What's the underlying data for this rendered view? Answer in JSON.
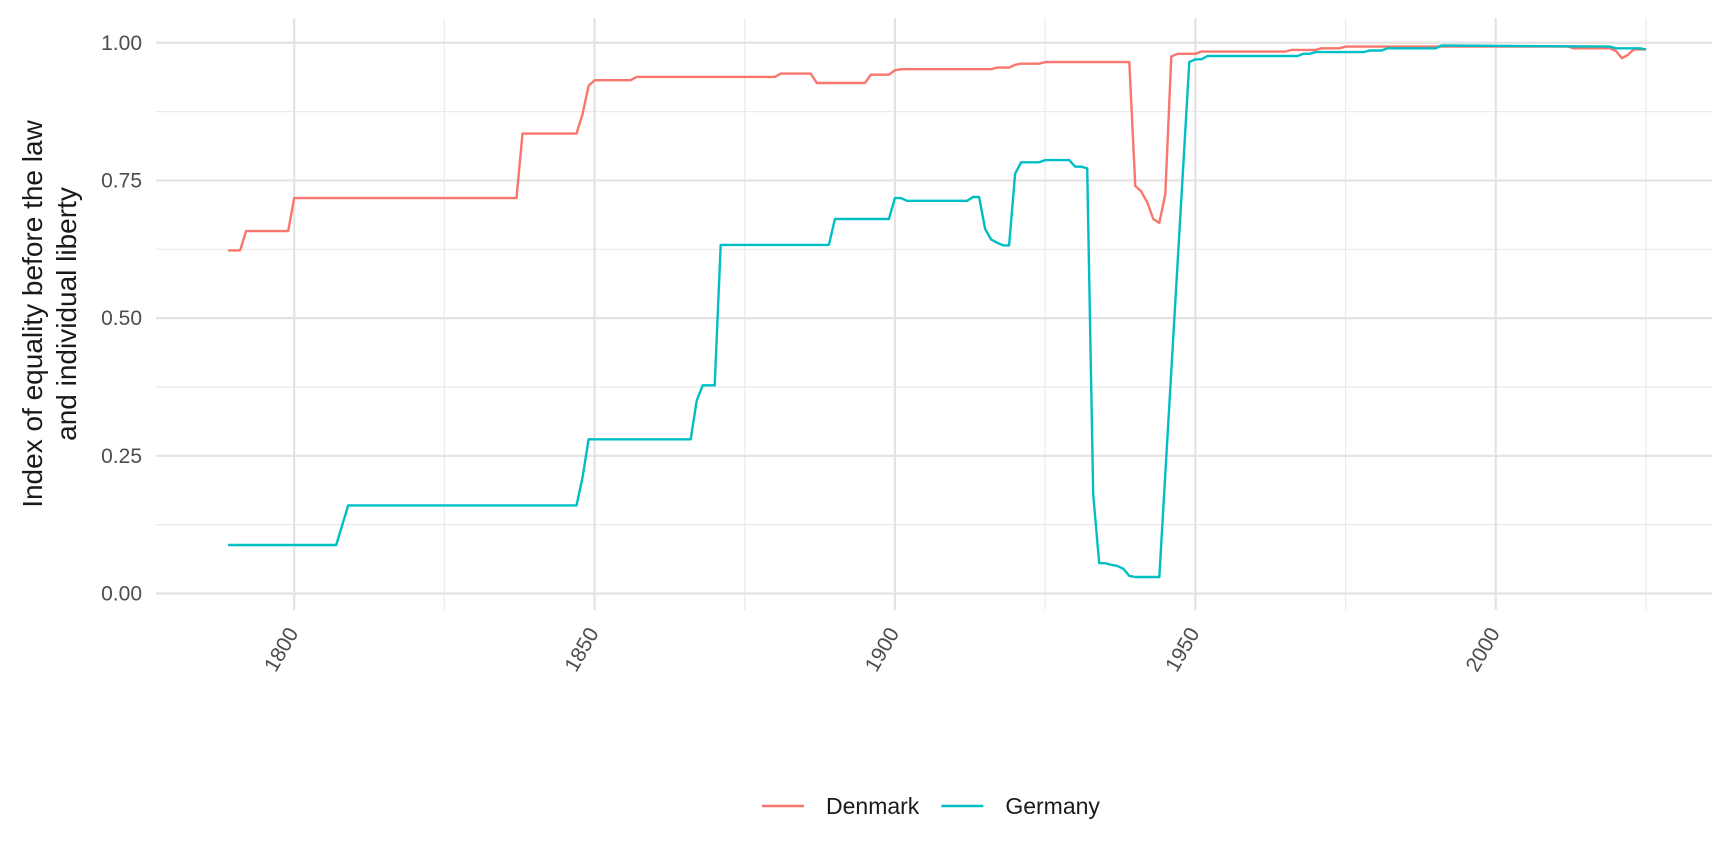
{
  "chart_data": {
    "type": "line",
    "title": "",
    "xlabel": "",
    "ylabel": [
      "Index of equality before the law",
      "and individual liberty"
    ],
    "xlim": [
      1777,
      2036
    ],
    "ylim": [
      -0.03,
      1.045
    ],
    "x_ticks": [
      1800,
      1850,
      1900,
      1950,
      2000
    ],
    "x_ticks_minor": [
      1825,
      1875,
      1925,
      1975,
      2025
    ],
    "y_ticks": [
      0.0,
      0.25,
      0.5,
      0.75,
      1.0
    ],
    "y_tick_labels": [
      "0.00",
      "0.25",
      "0.50",
      "0.75",
      "1.00"
    ],
    "y_ticks_minor": [
      0.125,
      0.375,
      0.625,
      0.875
    ],
    "grid": true,
    "legend_position": "bottom",
    "series": [
      {
        "name": "Denmark",
        "color": "#F8766D",
        "points": [
          [
            1789,
            0.623
          ],
          [
            1791,
            0.623
          ],
          [
            1792,
            0.658
          ],
          [
            1799,
            0.658
          ],
          [
            1800,
            0.718
          ],
          [
            1837,
            0.718
          ],
          [
            1838,
            0.835
          ],
          [
            1847,
            0.835
          ],
          [
            1848,
            0.87
          ],
          [
            1849,
            0.922
          ],
          [
            1850,
            0.932
          ],
          [
            1856,
            0.932
          ],
          [
            1857,
            0.938
          ],
          [
            1880,
            0.938
          ],
          [
            1881,
            0.944
          ],
          [
            1886,
            0.944
          ],
          [
            1887,
            0.927
          ],
          [
            1895,
            0.927
          ],
          [
            1896,
            0.942
          ],
          [
            1899,
            0.942
          ],
          [
            1900,
            0.95
          ],
          [
            1901,
            0.952
          ],
          [
            1916,
            0.952
          ],
          [
            1917,
            0.955
          ],
          [
            1919,
            0.955
          ],
          [
            1920,
            0.96
          ],
          [
            1921,
            0.962
          ],
          [
            1924,
            0.962
          ],
          [
            1925,
            0.965
          ],
          [
            1939,
            0.965
          ],
          [
            1940,
            0.74
          ],
          [
            1941,
            0.73
          ],
          [
            1942,
            0.71
          ],
          [
            1943,
            0.68
          ],
          [
            1944,
            0.673
          ],
          [
            1945,
            0.725
          ],
          [
            1946,
            0.975
          ],
          [
            1947,
            0.98
          ],
          [
            1950,
            0.98
          ],
          [
            1951,
            0.984
          ],
          [
            1965,
            0.984
          ],
          [
            1966,
            0.987
          ],
          [
            1970,
            0.987
          ],
          [
            1971,
            0.99
          ],
          [
            1974,
            0.99
          ],
          [
            1975,
            0.993
          ],
          [
            2012,
            0.993
          ],
          [
            2013,
            0.99
          ],
          [
            2019,
            0.99
          ],
          [
            2020,
            0.985
          ],
          [
            2021,
            0.972
          ],
          [
            2022,
            0.978
          ],
          [
            2023,
            0.988
          ],
          [
            2025,
            0.988
          ]
        ]
      },
      {
        "name": "Germany",
        "color": "#00BFC4",
        "points": [
          [
            1789,
            0.088
          ],
          [
            1807,
            0.088
          ],
          [
            1809,
            0.16
          ],
          [
            1847,
            0.16
          ],
          [
            1848,
            0.21
          ],
          [
            1849,
            0.28
          ],
          [
            1866,
            0.28
          ],
          [
            1867,
            0.35
          ],
          [
            1868,
            0.378
          ],
          [
            1870,
            0.378
          ],
          [
            1871,
            0.633
          ],
          [
            1889,
            0.633
          ],
          [
            1890,
            0.68
          ],
          [
            1899,
            0.68
          ],
          [
            1900,
            0.718
          ],
          [
            1901,
            0.718
          ],
          [
            1902,
            0.713
          ],
          [
            1912,
            0.713
          ],
          [
            1913,
            0.72
          ],
          [
            1914,
            0.72
          ],
          [
            1915,
            0.662
          ],
          [
            1916,
            0.643
          ],
          [
            1917,
            0.637
          ],
          [
            1918,
            0.632
          ],
          [
            1919,
            0.632
          ],
          [
            1920,
            0.762
          ],
          [
            1921,
            0.783
          ],
          [
            1924,
            0.783
          ],
          [
            1925,
            0.787
          ],
          [
            1929,
            0.787
          ],
          [
            1930,
            0.775
          ],
          [
            1931,
            0.775
          ],
          [
            1932,
            0.772
          ],
          [
            1933,
            0.18
          ],
          [
            1934,
            0.055
          ],
          [
            1935,
            0.055
          ],
          [
            1936,
            0.052
          ],
          [
            1937,
            0.05
          ],
          [
            1938,
            0.045
          ],
          [
            1939,
            0.032
          ],
          [
            1940,
            0.03
          ],
          [
            1944,
            0.03
          ],
          [
            1949,
            0.965
          ],
          [
            1950,
            0.97
          ],
          [
            1951,
            0.97
          ],
          [
            1952,
            0.976
          ],
          [
            1967,
            0.976
          ],
          [
            1968,
            0.98
          ],
          [
            1969,
            0.98
          ],
          [
            1970,
            0.983
          ],
          [
            1978,
            0.983
          ],
          [
            1979,
            0.986
          ],
          [
            1981,
            0.986
          ],
          [
            1982,
            0.99
          ],
          [
            1990,
            0.99
          ],
          [
            1991,
            0.995
          ],
          [
            2019,
            0.993
          ],
          [
            2020,
            0.99
          ],
          [
            2024,
            0.99
          ],
          [
            2025,
            0.988
          ]
        ]
      }
    ]
  }
}
